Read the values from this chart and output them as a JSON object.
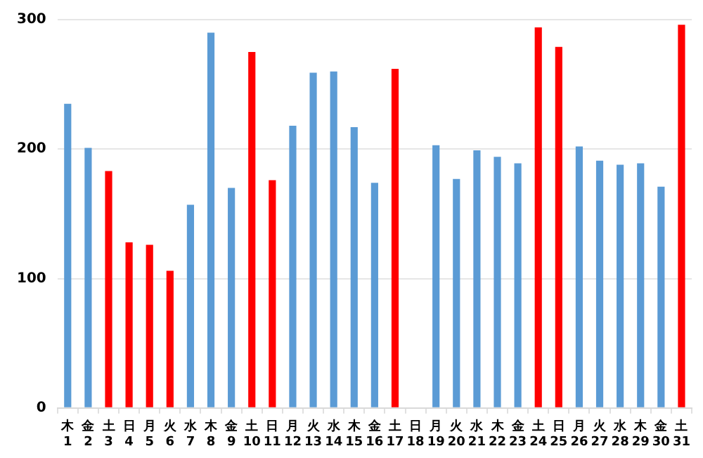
{
  "chart_data": {
    "type": "bar",
    "categories": [
      "木\n1",
      "金\n2",
      "土\n3",
      "日\n4",
      "月\n5",
      "火\n6",
      "水\n7",
      "木\n8",
      "金\n9",
      "土\n10",
      "日\n11",
      "月\n12",
      "火\n13",
      "水\n14",
      "木\n15",
      "金\n16",
      "土\n17",
      "日\n18",
      "月\n19",
      "火\n20",
      "水\n21",
      "木\n22",
      "金\n23",
      "土\n24",
      "日\n25",
      "月\n26",
      "火\n27",
      "水\n28",
      "木\n29",
      "金\n30",
      "土\n31"
    ],
    "values": [
      235,
      201,
      183,
      128,
      126,
      106,
      157,
      290,
      170,
      275,
      176,
      218,
      259,
      260,
      217,
      174,
      262,
      null,
      203,
      177,
      199,
      194,
      189,
      294,
      279,
      202,
      191,
      188,
      189,
      171,
      296
    ],
    "colors": [
      "#5b9bd5",
      "#5b9bd5",
      "#ff0000",
      "#ff0000",
      "#ff0000",
      "#ff0000",
      "#5b9bd5",
      "#5b9bd5",
      "#5b9bd5",
      "#ff0000",
      "#ff0000",
      "#5b9bd5",
      "#5b9bd5",
      "#5b9bd5",
      "#5b9bd5",
      "#5b9bd5",
      "#ff0000",
      "#ff0000",
      "#5b9bd5",
      "#5b9bd5",
      "#5b9bd5",
      "#5b9bd5",
      "#5b9bd5",
      "#ff0000",
      "#ff0000",
      "#5b9bd5",
      "#5b9bd5",
      "#5b9bd5",
      "#5b9bd5",
      "#5b9bd5",
      "#ff0000"
    ],
    "ylim": [
      0,
      300
    ],
    "yticks": [
      0,
      100,
      200,
      300
    ],
    "grid": "y"
  }
}
